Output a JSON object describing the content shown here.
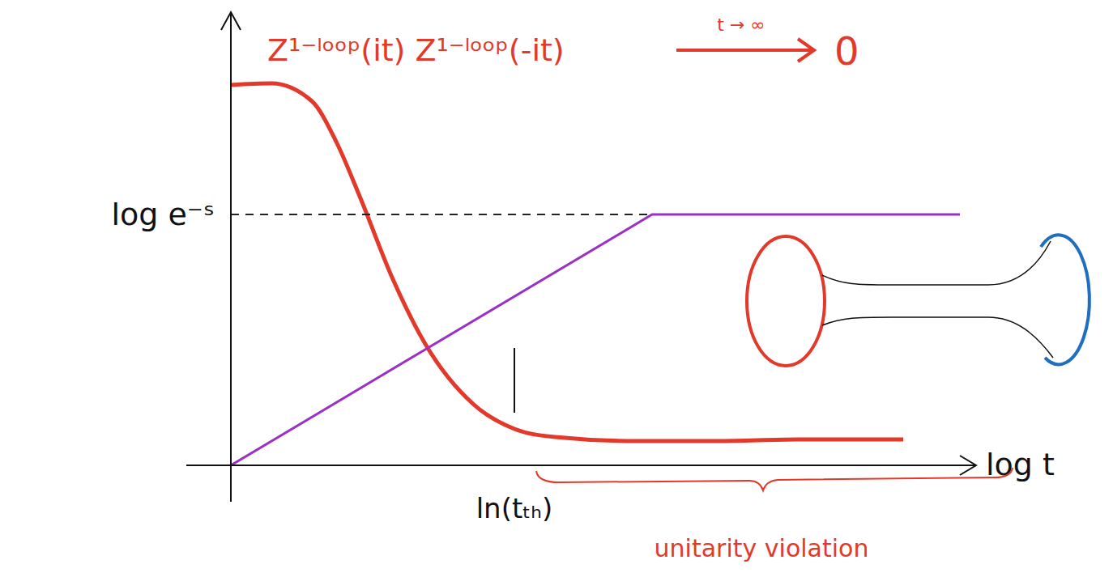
{
  "chart_data": {
    "type": "line",
    "xlabel": "log t",
    "xlim": [
      0,
      9.2
    ],
    "ylim": [
      0,
      5.6
    ],
    "xticks": [
      {
        "value": 3.5,
        "label": "ln(tₜₕ)"
      }
    ],
    "yticks": [
      {
        "value": 3.1,
        "label": "log e⁻ˢ"
      }
    ],
    "grid": false,
    "series": [
      {
        "color": "#e3392b",
        "x": [
          0,
          0.5,
          1,
          1.3,
          1.6,
          2.0,
          2.4,
          3.0,
          3.5,
          4.0,
          5.0,
          6.0,
          7.0,
          8.3
        ],
        "values": [
          4.7,
          4.72,
          4.5,
          4.0,
          3.3,
          2.3,
          1.5,
          0.75,
          0.45,
          0.35,
          0.3,
          0.3,
          0.32,
          0.32
        ]
      },
      {
        "color": "#9b2fc6",
        "x": [
          0,
          5.2,
          9
        ],
        "values": [
          0,
          3.1,
          3.1
        ]
      },
      {
        "color": "#222222",
        "line_style": "dashed",
        "x": [
          0,
          5.2
        ],
        "values": [
          3.1,
          3.1
        ]
      }
    ],
    "annotations": [
      "Z¹⁻ˡᵒᵒᵖ(it) Z¹⁻ˡᵒᵒᵖ(-it)",
      "t → ∞",
      "0",
      "unitarity violation"
    ]
  }
}
